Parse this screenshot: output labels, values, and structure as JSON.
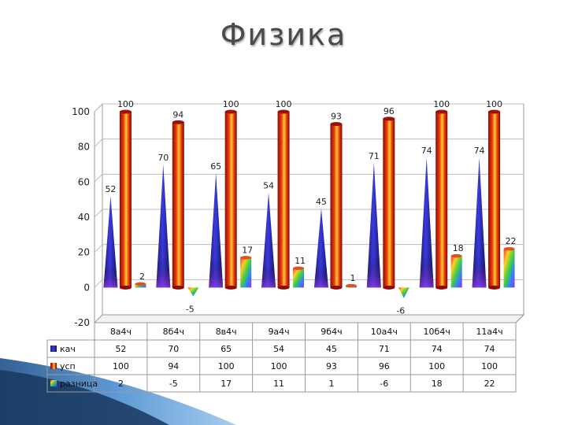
{
  "slide": {
    "title": "Физика"
  },
  "colors": {
    "kach": "#2a2ab0",
    "usp": "#d8280c",
    "raznitsa": "#f0b020"
  },
  "chart_data": {
    "type": "bar",
    "title": "Физика",
    "categories": [
      "8а4ч",
      "8б4ч",
      "8в4ч",
      "9а4ч",
      "9б4ч",
      "10а4ч",
      "10б4ч",
      "11а4ч"
    ],
    "series": [
      {
        "name": "кач",
        "values": [
          52,
          70,
          65,
          54,
          45,
          71,
          74,
          74
        ],
        "shape": "cone"
      },
      {
        "name": "усп",
        "values": [
          100,
          94,
          100,
          100,
          93,
          96,
          100,
          100
        ],
        "shape": "cylinder"
      },
      {
        "name": "разница",
        "values": [
          2,
          -5,
          17,
          11,
          1,
          -6,
          18,
          22
        ],
        "shape": "cylinder-rainbow"
      }
    ],
    "ylim": [
      -20,
      100
    ],
    "yticks": [
      -20,
      0,
      20,
      40,
      60,
      80,
      100
    ],
    "grid": true,
    "legend": "data-table"
  }
}
